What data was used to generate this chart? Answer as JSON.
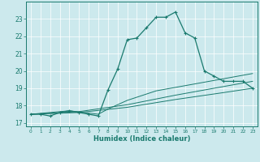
{
  "xlabel": "Humidex (Indice chaleur)",
  "bg_color": "#cce9ed",
  "line_color": "#1a7a6e",
  "grid_color": "#b0d8dd",
  "xlim": [
    -0.5,
    23.5
  ],
  "ylim": [
    16.8,
    24.0
  ],
  "yticks": [
    17,
    18,
    19,
    20,
    21,
    22,
    23
  ],
  "xticks": [
    0,
    1,
    2,
    3,
    4,
    5,
    6,
    7,
    8,
    9,
    10,
    11,
    12,
    13,
    14,
    15,
    16,
    17,
    18,
    19,
    20,
    21,
    22,
    23
  ],
  "series_main": [
    [
      0,
      17.5
    ],
    [
      1,
      17.5
    ],
    [
      2,
      17.4
    ],
    [
      3,
      17.6
    ],
    [
      4,
      17.7
    ],
    [
      5,
      17.6
    ],
    [
      6,
      17.5
    ],
    [
      7,
      17.4
    ],
    [
      8,
      18.9
    ],
    [
      9,
      20.1
    ],
    [
      10,
      21.8
    ],
    [
      11,
      21.9
    ],
    [
      12,
      22.5
    ],
    [
      13,
      23.1
    ],
    [
      14,
      23.1
    ],
    [
      15,
      23.4
    ],
    [
      16,
      22.2
    ],
    [
      17,
      21.9
    ],
    [
      18,
      20.0
    ],
    [
      19,
      19.7
    ],
    [
      20,
      19.4
    ],
    [
      21,
      19.4
    ],
    [
      22,
      19.4
    ],
    [
      23,
      19.0
    ]
  ],
  "series2": [
    [
      0,
      17.5
    ],
    [
      4,
      17.7
    ],
    [
      7,
      17.5
    ],
    [
      8,
      17.8
    ],
    [
      10,
      18.3
    ],
    [
      13,
      18.85
    ],
    [
      15,
      19.05
    ],
    [
      18,
      19.35
    ],
    [
      20,
      19.55
    ],
    [
      22,
      19.75
    ],
    [
      23,
      19.85
    ]
  ],
  "series3": [
    [
      0,
      17.5
    ],
    [
      5,
      17.65
    ],
    [
      10,
      18.05
    ],
    [
      15,
      18.6
    ],
    [
      20,
      19.1
    ],
    [
      23,
      19.4
    ]
  ],
  "series4": [
    [
      0,
      17.5
    ],
    [
      5,
      17.6
    ],
    [
      10,
      17.9
    ],
    [
      15,
      18.35
    ],
    [
      20,
      18.75
    ],
    [
      23,
      19.0
    ]
  ]
}
